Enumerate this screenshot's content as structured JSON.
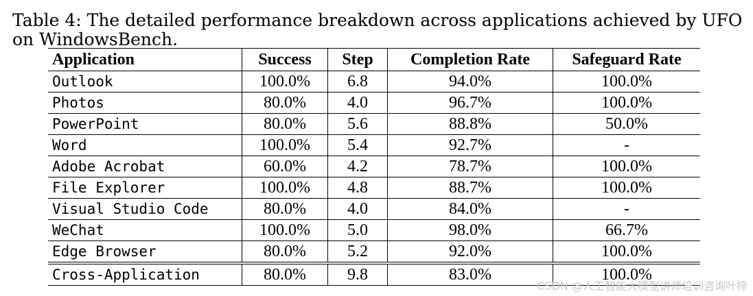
{
  "caption": "Table 4: The detailed performance breakdown across applications achieved by UFO on WindowsBench.",
  "table": {
    "headers": [
      "Application",
      "Success",
      "Step",
      "Completion Rate",
      "Safeguard Rate"
    ],
    "rows": [
      [
        "Outlook",
        "100.0%",
        "6.8",
        "94.0%",
        "100.0%"
      ],
      [
        "Photos",
        "80.0%",
        "4.0",
        "96.7%",
        "100.0%"
      ],
      [
        "PowerPoint",
        "80.0%",
        "5.6",
        "88.8%",
        "50.0%"
      ],
      [
        "Word",
        "100.0%",
        "5.4",
        "92.7%",
        "-"
      ],
      [
        "Adobe Acrobat",
        "60.0%",
        "4.2",
        "78.7%",
        "100.0%"
      ],
      [
        "File Explorer",
        "100.0%",
        "4.8",
        "88.7%",
        "100.0%"
      ],
      [
        "Visual Studio Code",
        "80.0%",
        "4.0",
        "84.0%",
        "-"
      ],
      [
        "WeChat",
        "100.0%",
        "5.0",
        "98.0%",
        "66.7%"
      ],
      [
        "Edge Browser",
        "80.0%",
        "5.2",
        "92.0%",
        "100.0%"
      ]
    ],
    "total": [
      "Cross-Application",
      "80.0%",
      "9.8",
      "83.0%",
      "100.0%"
    ]
  },
  "watermark": "CSDN @人工智能大模型讲师培训咨询叶梓"
}
